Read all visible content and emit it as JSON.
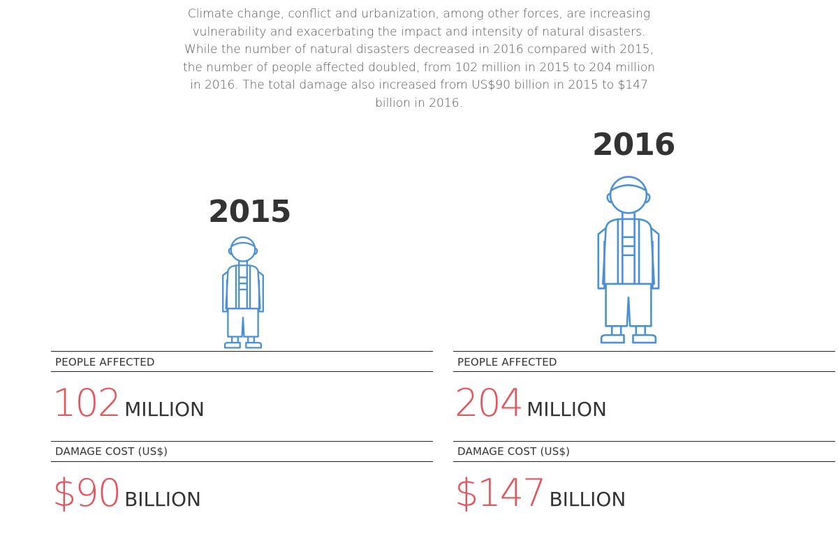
{
  "intro": {
    "lines": [
      "Climate change, conflict and urbanization, among other forces, are increasing",
      "vulnerability and exacerbating the impact and intensity of natural disasters.",
      "While the number of natural disasters decreased in 2016 compared with 2015,",
      "the number of people affected doubled, from 102 million in 2015 to 204 million",
      "in 2016. The total damage also increased from US$90 billion in 2015 to $147",
      "billion in 2016."
    ]
  },
  "years": [
    {
      "year": "2015",
      "people_label": "PEOPLE AFFECTED",
      "people_value": "102",
      "people_unit": "MILLION",
      "damage_label": "DAMAGE COST (US$)",
      "damage_value": "$90",
      "damage_unit": "BILLION"
    },
    {
      "year": "2016",
      "people_label": "PEOPLE AFFECTED",
      "people_value": "204",
      "people_unit": "MILLION",
      "damage_label": "DAMAGE COST (US$)",
      "damage_value": "$147",
      "damage_unit": "BILLION"
    }
  ],
  "icons": {
    "person": "person-outline-icon"
  },
  "colors": {
    "accent": "#e8525a",
    "figure": "#4a90d9",
    "text": "#333333"
  }
}
